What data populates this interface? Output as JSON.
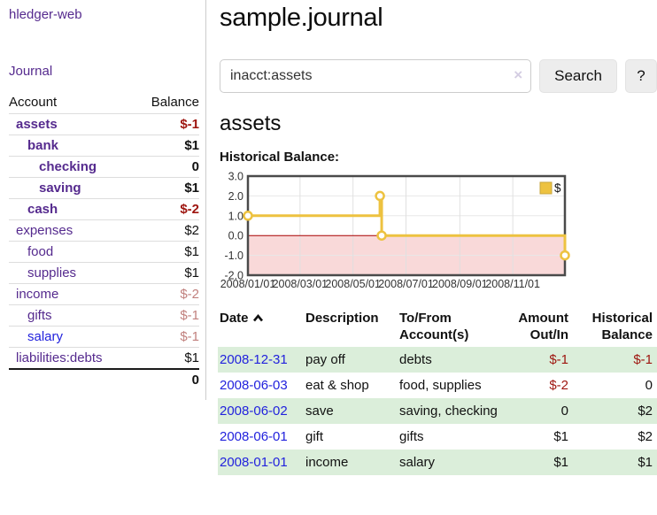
{
  "app": {
    "brand": "hledger-web",
    "nav": "Journal"
  },
  "sidebar": {
    "col_account": "Account",
    "col_balance": "Balance",
    "accounts": [
      {
        "name": "assets",
        "balance": "$-1",
        "indent": 1,
        "current": true,
        "bal": "neg-strong"
      },
      {
        "name": "bank",
        "balance": "$1",
        "indent": 2,
        "current": true,
        "bal": "strong"
      },
      {
        "name": "checking",
        "balance": "0",
        "indent": 3,
        "current": true,
        "bal": "strong"
      },
      {
        "name": "saving",
        "balance": "$1",
        "indent": 3,
        "current": true,
        "bal": "strong"
      },
      {
        "name": "cash",
        "balance": "$-2",
        "indent": 2,
        "current": true,
        "bal": "neg-strong"
      },
      {
        "name": "expenses",
        "balance": "$2",
        "indent": 1,
        "current": false,
        "bal": "plain"
      },
      {
        "name": "food",
        "balance": "$1",
        "indent": 2,
        "current": false,
        "bal": "plain"
      },
      {
        "name": "supplies",
        "balance": "$1",
        "indent": 2,
        "current": false,
        "bal": "plain"
      },
      {
        "name": "income",
        "balance": "$-2",
        "indent": 1,
        "current": false,
        "bal": "neg-light"
      },
      {
        "name": "gifts",
        "balance": "$-1",
        "indent": 2,
        "current": false,
        "bal": "neg-light"
      },
      {
        "name": "salary",
        "balance": "$-1",
        "indent": 2,
        "current": false,
        "bal": "neg-light",
        "link": "blue"
      },
      {
        "name": "liabilities:debts",
        "balance": "$1",
        "indent": 1,
        "current": false,
        "bal": "plain"
      }
    ],
    "total": "0"
  },
  "header": {
    "title": "sample.journal"
  },
  "search": {
    "value": "inacct:assets",
    "clear_icon": "×",
    "search_label": "Search",
    "help_label": "?"
  },
  "account": {
    "title": "assets",
    "section_label": "Historical Balance:"
  },
  "chart_data": {
    "type": "line",
    "style": "step-after",
    "title": "Historical Balance",
    "series": [
      {
        "name": "$",
        "color": "#EDC240",
        "points": [
          [
            "2008-01-01",
            1
          ],
          [
            "2008-06-01",
            2
          ],
          [
            "2008-06-03",
            0
          ],
          [
            "2008-12-31",
            -1
          ]
        ]
      }
    ],
    "x_range": [
      "2008-01-01",
      "2008-12-31"
    ],
    "x_ticks": [
      "2008/01/01",
      "2008/03/01",
      "2008/05/01",
      "2008/07/01",
      "2008/09/01",
      "2008/11/01"
    ],
    "y_ticks": [
      3.0,
      2.0,
      1.0,
      0.0,
      -1.0,
      -2.0
    ],
    "ylim": [
      -2,
      3
    ],
    "legend": {
      "label": "$",
      "position": "top-right"
    },
    "grid": true,
    "negative_region_color": "#f9d9d9",
    "zero_line_color": "#a80000"
  },
  "register": {
    "headers": {
      "date": "Date",
      "description": "Description",
      "tofrom_line1": "To/From",
      "tofrom_line2": "Account(s)",
      "amount_line1": "Amount",
      "amount_line2": "Out/In",
      "balance_line1": "Historical",
      "balance_line2": "Balance"
    },
    "rows": [
      {
        "date": "2008-12-31",
        "description": "pay off",
        "accounts": "debts",
        "amount": "$-1",
        "balance": "$-1"
      },
      {
        "date": "2008-06-03",
        "description": "eat & shop",
        "accounts": "food, supplies",
        "amount": "$-2",
        "balance": "0"
      },
      {
        "date": "2008-06-02",
        "description": "save",
        "accounts": "saving, checking",
        "amount": "0",
        "balance": "$2"
      },
      {
        "date": "2008-06-01",
        "description": "gift",
        "accounts": "gifts",
        "amount": "$1",
        "balance": "$2"
      },
      {
        "date": "2008-01-01",
        "description": "income",
        "accounts": "salary",
        "amount": "$1",
        "balance": "$1"
      }
    ]
  },
  "colors": {
    "purple_link": "#552a8e",
    "blue_link": "#2222dd",
    "neg_strong": "#9e150f",
    "neg_light": "#c1807d",
    "row_green": "#dbeeda",
    "chart_line": "#EDC240"
  }
}
